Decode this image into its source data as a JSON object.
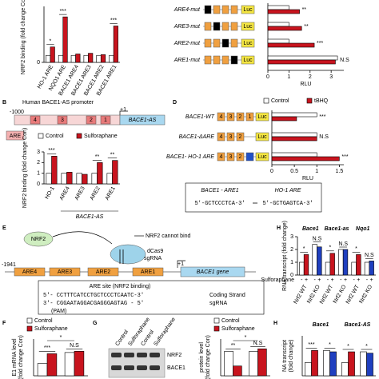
{
  "panel_A": {
    "chart": {
      "type": "bar",
      "y_label": "NRF2 binding (fold change Con)",
      "categories": [
        "HO-1 ARE",
        "NQO1 ARE",
        "BACE1 ARE4",
        "BACE1 ARE3",
        "BACE1 ARE2",
        "BACE1 ARE1"
      ],
      "series": [
        {
          "color": "#ffffff",
          "values": [
            1,
            1,
            1,
            1,
            1,
            1
          ]
        },
        {
          "color": "#c8141e",
          "values": [
            2.2,
            6.5,
            1.2,
            1.3,
            1.1,
            5.2
          ]
        }
      ],
      "ylim": [
        0,
        8
      ],
      "yticks": [
        0
      ],
      "significance": [
        "*",
        "***",
        null,
        null,
        null,
        "***"
      ]
    }
  },
  "panel_B": {
    "label": "B",
    "title": "Human BACE1-AS promoter",
    "start": "-1000",
    "tss": "+1",
    "boxes": [
      "4",
      "3",
      "2",
      "1"
    ],
    "gene": "BACE1-AS",
    "are_key": "ARE",
    "chart": {
      "type": "bar",
      "y_label": "NRF2 binding (fold change Con)",
      "categories": [
        "HO-1",
        "ARE4",
        "ARE3",
        "ARE2",
        "ARE1"
      ],
      "series": [
        {
          "name": "Control",
          "color": "#ffffff",
          "values": [
            1,
            1,
            1,
            1,
            1
          ]
        },
        {
          "name": "Sulforaphane",
          "color": "#c8141e",
          "values": [
            2.6,
            1.1,
            0.9,
            2.0,
            2.2
          ]
        }
      ],
      "ylim": [
        0,
        3
      ],
      "yticks": [
        0,
        1,
        2,
        3
      ],
      "significance": [
        "***",
        null,
        null,
        "**",
        "**"
      ],
      "group_label": "BACE1-AS"
    }
  },
  "panel_C": {
    "luc": "Luc",
    "chart": {
      "type": "hbar",
      "x_label": "RLU",
      "categories": [
        "ARE4-mut",
        "ARE3-mut",
        "ARE2-mut",
        "ARE1-mut"
      ],
      "series": [
        {
          "color": "#ffffff",
          "values": [
            1,
            1,
            1,
            3.3
          ]
        },
        {
          "color": "#c8141e",
          "values": [
            1.5,
            1.6,
            2.2,
            3.2
          ]
        }
      ],
      "xlim": [
        0,
        3.6
      ],
      "xticks": [
        0,
        1,
        2,
        3
      ],
      "significance": [
        "**",
        "**",
        "***",
        "N.S"
      ]
    }
  },
  "panel_D": {
    "label": "D",
    "boxes": [
      "4",
      "3",
      "2",
      "1"
    ],
    "luc": "Luc",
    "inset_left": "BACE1 - ARE1",
    "inset_right": "HO-1 ARE",
    "seq_left": "5'-GCTCCCTCA-3'",
    "seq_right": "5'-GCTGAGTCA-3'",
    "chart": {
      "type": "hbar",
      "x_label": "RLU",
      "categories": [
        "BACE1-WT",
        "BACE1-ΔARE",
        "BACE1- HO-1 ARE"
      ],
      "series": [
        {
          "name": "Control",
          "color": "#ffffff",
          "values": [
            1,
            1,
            1
          ]
        },
        {
          "name": "tBHQ",
          "color": "#c8141e",
          "values": [
            0.55,
            1.0,
            1.5
          ]
        }
      ],
      "xlim": [
        0,
        1.6
      ],
      "xticks": [
        0,
        0.5,
        1,
        1.5
      ],
      "significance": [
        "***",
        "N.S",
        "***"
      ]
    }
  },
  "panel_E": {
    "label": "E",
    "nrf2": "NRF2",
    "cannot_bind": "NRF2 cannot bind",
    "dcas9": "dCas9",
    "sgrna": "sgRNA",
    "start": "-1941",
    "boxes": [
      "ARE4",
      "ARE3",
      "ARE2",
      "ARE1"
    ],
    "tss": "+1",
    "gene": "BACE1 gene",
    "site_title": "ARE site (NRF2 binding)",
    "coding": "5'- CCTTTCATCCTGCTCCCTCAATC-3'",
    "coding_label": "Coding Strand",
    "sg": "3'- CGGAATAGGACGAGGGAGTAG - 5'",
    "sg_label": "sgRNA",
    "pam": "(PAM)"
  },
  "panel_H": {
    "label": "H",
    "genes": [
      "Bace1",
      "Bace1-as",
      "Nqo1"
    ],
    "treatment_label": "Sulforaphane",
    "chart": {
      "type": "bar",
      "y_label": "RNA transcript (fold change)",
      "categories": [
        "Nrf2 WT",
        "Nrf2 KO",
        "Nrf2 WT",
        "Nrf2 KO",
        "Nrf2 WT",
        "Nrf2 KO"
      ],
      "series": [
        {
          "name": "-",
          "color": "#ffffff",
          "values": [
            1,
            2.4,
            1,
            2.0,
            1,
            1.0
          ]
        },
        {
          "name": "+",
          "color": [
            "#c8141e",
            "#1f3fbf",
            "#c8141e",
            "#1f3fbf",
            "#c8141e",
            "#1f3fbf"
          ],
          "values": [
            1.6,
            2.2,
            1.7,
            2.0,
            1.6,
            1.1
          ]
        }
      ],
      "ylim": [
        0,
        3
      ],
      "yticks": [
        0,
        1,
        2,
        3
      ],
      "significance": [
        "*",
        "N.S",
        "*",
        "N.S",
        "*",
        "N.S"
      ]
    }
  },
  "panel_F": {
    "label": "F",
    "chart": {
      "type": "bar",
      "y_label": "E1 mRNA level",
      "y_label2": "(fold change Con)",
      "categories": [
        null,
        null
      ],
      "series": [
        {
          "name": "Control",
          "color": "#ffffff",
          "values": [
            1,
            1.9
          ]
        },
        {
          "name": "Sulforaphane",
          "color": "#c8141e",
          "values": [
            1.8,
            2.0
          ]
        }
      ],
      "ylim": [
        0,
        3
      ],
      "significance": [
        "***",
        "N.S"
      ],
      "between": "*"
    }
  },
  "panel_G": {
    "label": "G",
    "lanes": [
      "Control",
      "Sulforaphane",
      "Control",
      "Sulforaphane"
    ],
    "bands": [
      "NRF2",
      "BACE1"
    ],
    "chart": {
      "type": "bar",
      "y_label": "protein level",
      "y_label2": "(fold change Con)",
      "categories": [
        null,
        null
      ],
      "series": [
        {
          "name": "Control",
          "color": "#ffffff",
          "values": [
            1,
            1
          ]
        },
        {
          "name": "Sulforaphane",
          "color": "#c8141e",
          "values": [
            0.4,
            1.1
          ]
        }
      ],
      "ylim": [
        0,
        1.5
      ],
      "significance": [
        "**",
        "N.S"
      ],
      "between": "*"
    }
  },
  "panel_H2": {
    "label": "H",
    "genes": [
      "Bace1",
      "Bace1-AS"
    ],
    "chart": {
      "type": "bar",
      "y_label": "NA transcript",
      "y_label2": "(fold change)",
      "categories": [
        null,
        null,
        null,
        null
      ],
      "series": [
        {
          "color": "#ffffff",
          "values": [
            1,
            1.9,
            1,
            1.8
          ]
        },
        {
          "color": [
            "#c8141e",
            "#1f3fbf",
            "#c8141e",
            "#1f3fbf"
          ],
          "values": [
            1.9,
            1.8,
            1.8,
            1.7
          ]
        }
      ],
      "ylim": [
        0,
        3
      ],
      "significance": [
        "***",
        "*",
        "*",
        "*"
      ]
    }
  }
}
